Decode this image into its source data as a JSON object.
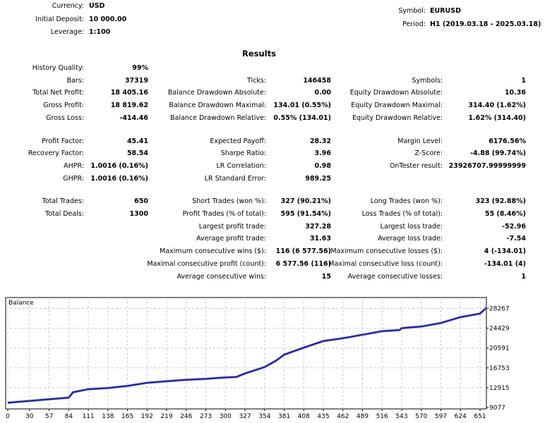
{
  "settings": {
    "left": [
      {
        "label": "Currency:",
        "value": "USD"
      },
      {
        "label": "Initial Deposit:",
        "value": "10 000.00"
      },
      {
        "label": "Leverage:",
        "value": "1:100"
      }
    ],
    "right": [
      {
        "label": "Symbol:",
        "value": "EURUSD"
      },
      {
        "label": "Period:",
        "value": "H1 (2019.03.18 - 2025.03.18)"
      }
    ]
  },
  "results": {
    "title": "Results",
    "rows": [
      [
        [
          "History Quality:",
          "99%"
        ],
        null,
        null
      ],
      [
        [
          "Bars:",
          "37319"
        ],
        [
          "Ticks:",
          "146458"
        ],
        [
          "Symbols:",
          "1"
        ]
      ],
      [
        [
          "Total Net Profit:",
          "18 405.16"
        ],
        [
          "Balance Drawdown Absolute:",
          "0.00"
        ],
        [
          "Equity Drawdown Absolute:",
          "10.36"
        ]
      ],
      [
        [
          "Gross Profit:",
          "18 819.62"
        ],
        [
          "Balance Drawdown Maximal:",
          "134.01 (0.55%)"
        ],
        [
          "Equity Drawdown Maximal:",
          "314.40 (1.62%)"
        ]
      ],
      [
        [
          "Gross Loss:",
          "-414.46"
        ],
        [
          "Balance Drawdown Relative:",
          "0.55% (134.01)"
        ],
        [
          "Equity Drawdown Relative:",
          "1.62% (314.40)"
        ]
      ],
      null,
      [
        [
          "Profit Factor:",
          "45.41"
        ],
        [
          "Expected Payoff:",
          "28.32"
        ],
        [
          "Margin Level:",
          "6176.56%"
        ]
      ],
      [
        [
          "Recovery Factor:",
          "58.54"
        ],
        [
          "Sharpe Ratio:",
          "3.96"
        ],
        [
          "Z-Score:",
          "-4.88 (99.74%)"
        ]
      ],
      [
        [
          "AHPR:",
          "1.0016 (0.16%)"
        ],
        [
          "LR Correlation:",
          "0.98"
        ],
        [
          "OnTester result:",
          "23926707.99999999"
        ]
      ],
      [
        [
          "GHPR:",
          "1.0016 (0.16%)"
        ],
        [
          "LR Standard Error:",
          "989.25"
        ],
        null
      ],
      null,
      [
        [
          "Total Trades:",
          "650"
        ],
        [
          "Short Trades (won %):",
          "327 (90.21%)"
        ],
        [
          "Long Trades (won %):",
          "323 (92.88%)"
        ]
      ],
      [
        [
          "Total Deals:",
          "1300"
        ],
        [
          "Profit Trades (% of total):",
          "595 (91.54%)"
        ],
        [
          "Loss Trades (% of total):",
          "55 (8.46%)"
        ]
      ],
      [
        null,
        [
          "Largest profit trade:",
          "327.28"
        ],
        [
          "Largest loss trade:",
          "-52.96"
        ]
      ],
      [
        null,
        [
          "Average profit trade:",
          "31.63"
        ],
        [
          "Average loss trade:",
          "-7.54"
        ]
      ],
      [
        null,
        [
          "Maximum consecutive wins ($):",
          "116 (6 577.56)"
        ],
        [
          "Maximum consecutive losses ($):",
          "4 (-134.01)"
        ]
      ],
      [
        null,
        [
          "Maximal consecutive profit (count):",
          "6 577.56 (116)"
        ],
        [
          "Maximal consecutive loss (count):",
          "-134.01 (4)"
        ]
      ],
      [
        null,
        [
          "Average consecutive wins:",
          "15"
        ],
        [
          "Average consecutive losses:",
          "1"
        ]
      ]
    ]
  },
  "chart_data": {
    "type": "line",
    "title": "Balance",
    "series": [
      {
        "name": "Balance",
        "color": "#1a1aa8",
        "x": [
          0,
          84,
          90,
          111,
          138,
          165,
          192,
          219,
          246,
          273,
          300,
          315,
          327,
          354,
          370,
          381,
          408,
          435,
          462,
          489,
          516,
          540,
          543,
          570,
          597,
          624,
          651,
          660
        ],
        "y": [
          10000,
          10990,
          12030,
          12620,
          12850,
          13260,
          13850,
          14170,
          14440,
          14620,
          14900,
          14990,
          15670,
          16900,
          18170,
          19310,
          20670,
          21950,
          22490,
          23170,
          23860,
          24080,
          24450,
          24760,
          25450,
          26580,
          27270,
          28405
        ]
      }
    ],
    "x_ticks": [
      "0",
      "30",
      "57",
      "84",
      "111",
      "138",
      "165",
      "192",
      "219",
      "246",
      "273",
      "300",
      "327",
      "354",
      "381",
      "408",
      "435",
      "462",
      "489",
      "516",
      "543",
      "570",
      "597",
      "624",
      "651"
    ],
    "y_ticks": [
      "28267",
      "24429",
      "20591",
      "16753",
      "12915",
      "9077"
    ],
    "xlim": [
      0,
      660
    ],
    "ylim": [
      9077,
      28267
    ],
    "grid": true
  }
}
